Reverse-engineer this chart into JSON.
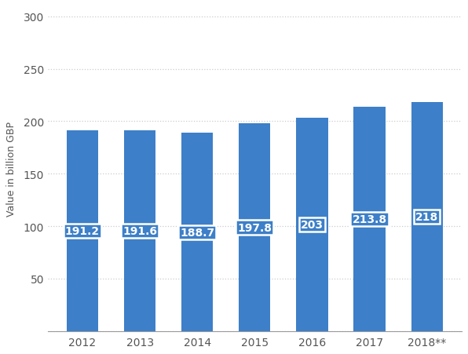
{
  "categories": [
    "2012",
    "2013",
    "2014",
    "2015",
    "2016",
    "2017",
    "2018**"
  ],
  "values": [
    191.2,
    191.6,
    188.7,
    197.8,
    203,
    213.8,
    218
  ],
  "bar_color": "#3d7fc8",
  "label_color_text": "white",
  "ylabel": "Value in billion GBP",
  "ylim": [
    0,
    310
  ],
  "yticks": [
    0,
    50,
    100,
    150,
    200,
    250,
    300
  ],
  "grid_color": "#cccccc",
  "background_color": "#ffffff",
  "plot_bg_color": "#ffffff",
  "label_fontsize": 10,
  "label_fontweight": "bold",
  "axis_fontsize": 10,
  "ylabel_fontsize": 9,
  "bar_width": 0.55
}
